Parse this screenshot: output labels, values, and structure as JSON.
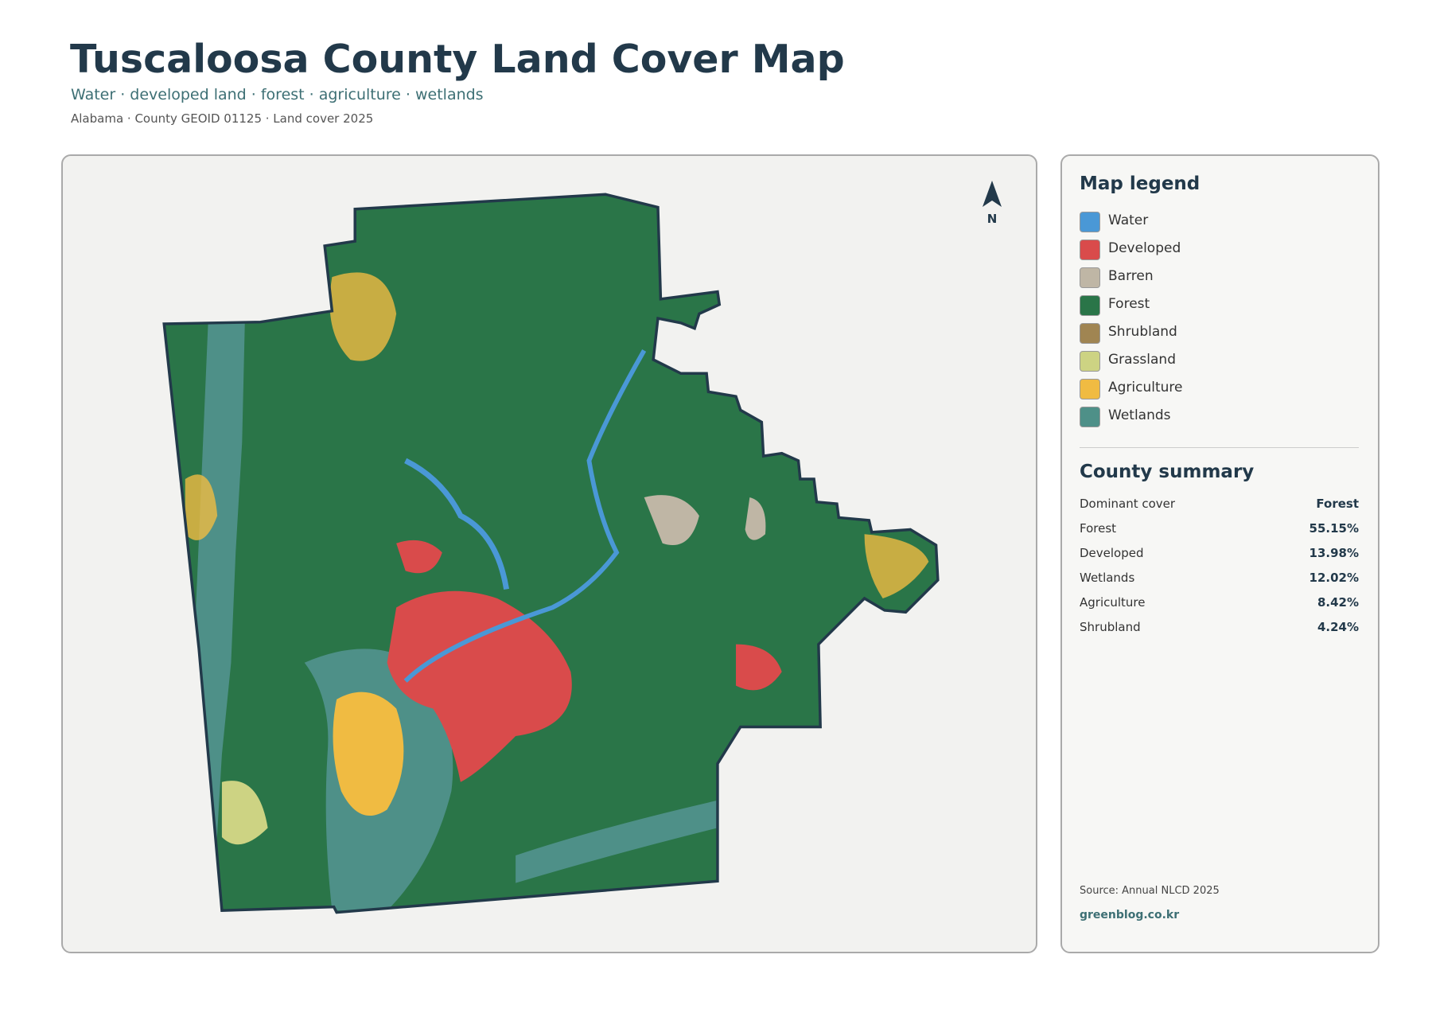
{
  "header": {
    "title": "Tuscaloosa County Land Cover Map",
    "subtitle": "Water · developed land · forest · agriculture · wetlands",
    "meta": "Alabama · County GEOID 01125 · Land cover 2025"
  },
  "map": {
    "north": "N"
  },
  "legend": {
    "title": "Map legend",
    "items": [
      {
        "label": "Water",
        "color": "#4a98d6"
      },
      {
        "label": "Developed",
        "color": "#d94b4b"
      },
      {
        "label": "Barren",
        "color": "#bfb6a5"
      },
      {
        "label": "Forest",
        "color": "#2a7548"
      },
      {
        "label": "Shrubland",
        "color": "#a08552"
      },
      {
        "label": "Grassland",
        "color": "#cdd383"
      },
      {
        "label": "Agriculture",
        "color": "#f0bb42"
      },
      {
        "label": "Wetlands",
        "color": "#4e9088"
      }
    ]
  },
  "summary": {
    "title": "County summary",
    "rows": [
      {
        "label": "Dominant cover",
        "value": "Forest"
      },
      {
        "label": "Forest",
        "value": "55.15%"
      },
      {
        "label": "Developed",
        "value": "13.98%"
      },
      {
        "label": "Wetlands",
        "value": "12.02%"
      },
      {
        "label": "Agriculture",
        "value": "8.42%"
      },
      {
        "label": "Shrubland",
        "value": "4.24%"
      }
    ]
  },
  "footer": {
    "source": "Source: Annual NLCD 2025",
    "site": "greenblog.co.kr"
  }
}
